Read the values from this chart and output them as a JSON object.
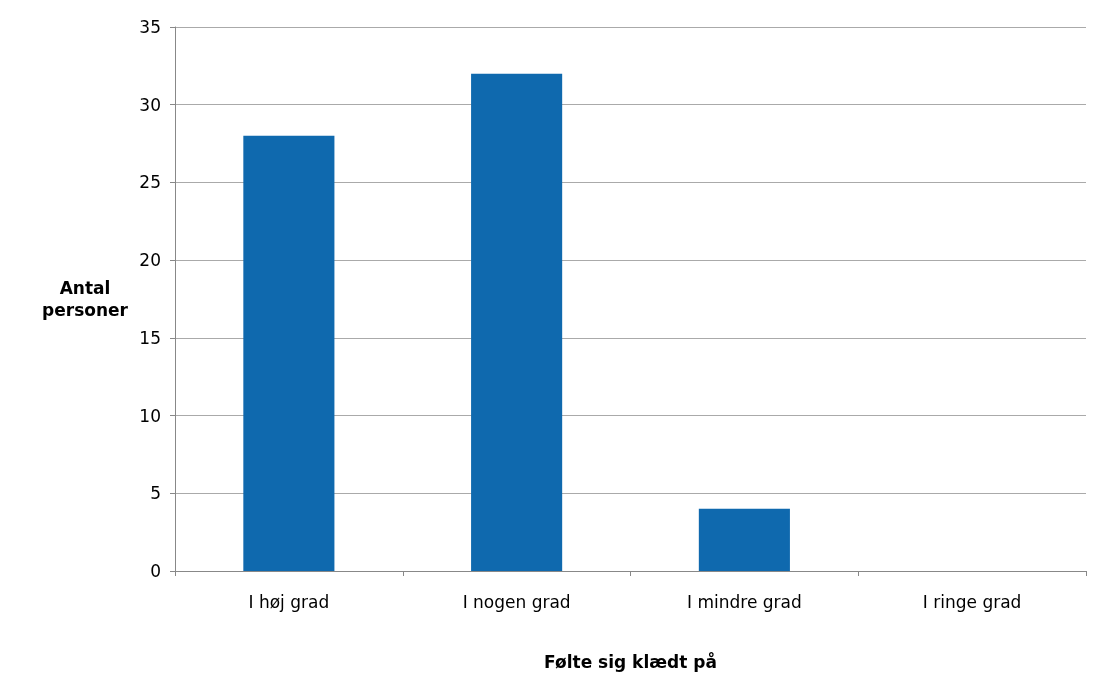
{
  "chart_data": {
    "type": "bar",
    "xlabel": "Følte sig klædt på",
    "ylabel": "Antal personer",
    "categories": [
      "I høj grad",
      "I nogen grad",
      "I mindre grad",
      "I ringe grad"
    ],
    "values": [
      28,
      32,
      4,
      0
    ],
    "color": "#0f69ae",
    "ylim": [
      0,
      35
    ],
    "yticks": [
      0,
      5,
      10,
      15,
      20,
      25,
      30,
      35
    ],
    "grid": "y"
  }
}
